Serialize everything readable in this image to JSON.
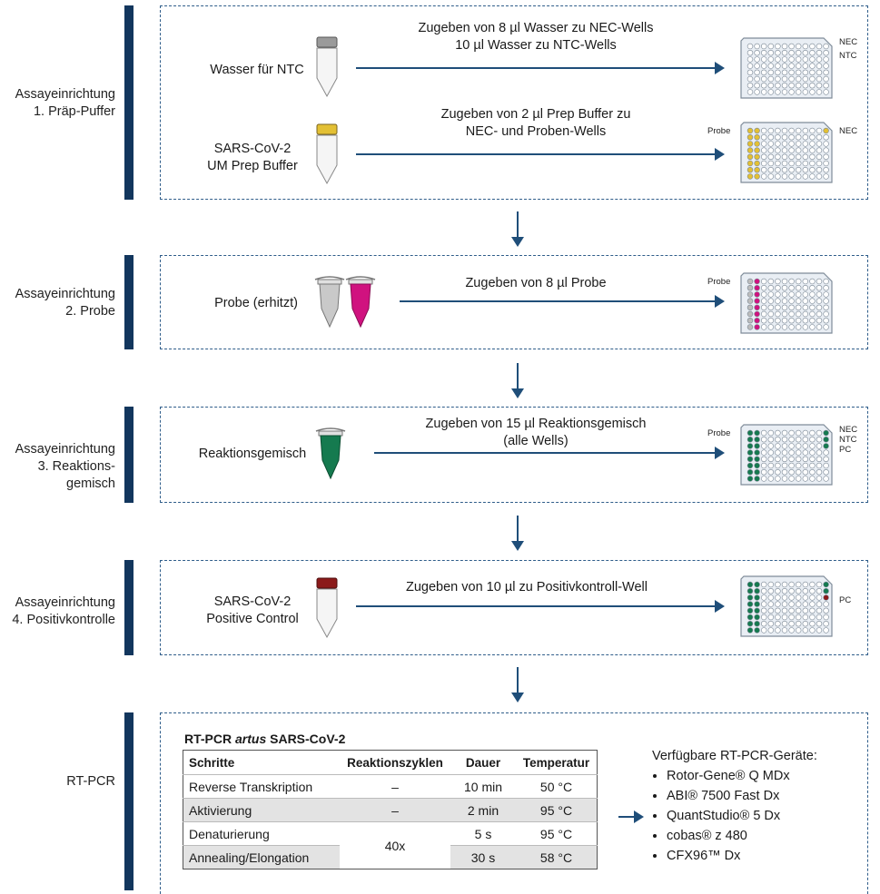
{
  "steps": [
    {
      "label_line1": "Assayeinrichtung",
      "label_line2": "1. Präp-Puffer",
      "rows": [
        {
          "reagent": [
            "Wasser für NTC"
          ],
          "instruction": [
            "Zugeben von 8 µl Wasser zu NEC-Wells",
            "10 µl Wasser zu NTC-Wells"
          ],
          "plate_labels": [
            "NEC",
            "NTC"
          ]
        },
        {
          "reagent": [
            "SARS-CoV-2",
            "UM Prep Buffer"
          ],
          "instruction": [
            "Zugeben von 2 µl Prep Buffer zu",
            "NEC- und Proben-Wells"
          ],
          "plate_labels": [
            "Probe",
            "NEC"
          ]
        }
      ]
    },
    {
      "label_line1": "Assayeinrichtung",
      "label_line2": "2. Probe",
      "rows": [
        {
          "reagent": [
            "Probe (erhitzt)"
          ],
          "instruction": [
            "Zugeben von 8 µl Probe"
          ],
          "plate_labels": [
            "Probe"
          ]
        }
      ]
    },
    {
      "label_line1": "Assayeinrichtung",
      "label_line2": "3. Reaktions-",
      "label_line3": "gemisch",
      "rows": [
        {
          "reagent": [
            "Reaktionsgemisch"
          ],
          "instruction": [
            "Zugeben von 15 µl Reaktionsgemisch",
            "(alle Wells)"
          ],
          "plate_labels": [
            "Probe",
            "NEC",
            "NTC",
            "PC"
          ]
        }
      ]
    },
    {
      "label_line1": "Assayeinrichtung",
      "label_line2": "4. Positivkontrolle",
      "rows": [
        {
          "reagent": [
            "SARS-CoV-2",
            "Positive Control"
          ],
          "instruction": [
            "Zugeben von 10 µl zu Positivkontroll-Well"
          ],
          "plate_labels": [
            "PC"
          ]
        }
      ]
    }
  ],
  "rtpcr": {
    "label": "RT-PCR",
    "title_prefix": "RT-PCR ",
    "title_italic": "artus",
    "title_suffix": " SARS-CoV-2",
    "columns": [
      "Schritte",
      "Reaktionszyklen",
      "Dauer",
      "Temperatur"
    ],
    "rows": [
      [
        "Reverse Transkription",
        "–",
        "10 min",
        "50 °C"
      ],
      [
        "Aktivierung",
        "–",
        "2 min",
        "95 °C"
      ],
      [
        "Denaturierung",
        "40x",
        "5 s",
        "95 °C"
      ],
      [
        "Annealing/Elongation",
        "",
        "30 s",
        "58 °C"
      ]
    ],
    "devices_title": "Verfügbare RT-PCR-Geräte:",
    "devices": [
      "Rotor-Gene® Q MDx",
      "ABI® 7500 Fast Dx",
      "QuantStudio® 5 Dx",
      "cobas® z 480",
      "CFX96™ Dx"
    ]
  },
  "colors": {
    "bar": "#12365d",
    "arrow": "#1f4e79",
    "yellow": "#e3c034",
    "magenta": "#d0127f",
    "green": "#157a4f",
    "red": "#8b1a1a",
    "gray_well": "#bdbdbd"
  }
}
